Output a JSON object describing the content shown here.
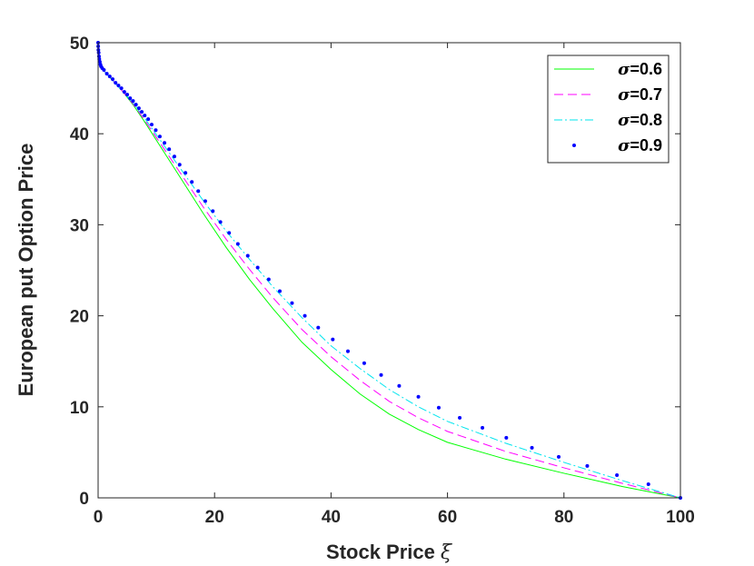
{
  "chart_data": {
    "type": "line",
    "xlabel": "Stock Price",
    "xlabel_symbol": "ξ",
    "ylabel": "European put Option Price",
    "xlim": [
      0,
      100
    ],
    "ylim": [
      0,
      50
    ],
    "xticks": [
      0,
      20,
      40,
      60,
      80,
      100
    ],
    "yticks": [
      0,
      10,
      20,
      30,
      40,
      50
    ],
    "grid": false,
    "legend_position": "top-right",
    "legend_symbol": "σ",
    "series": [
      {
        "name": "=0.6",
        "color": "#00ff00",
        "style": "solid",
        "points": [
          [
            0,
            50
          ],
          [
            0.1,
            48.8
          ],
          [
            0.3,
            47.8
          ],
          [
            0.6,
            47.2
          ],
          [
            1,
            46.9
          ],
          [
            2,
            46.2
          ],
          [
            4,
            44.8
          ],
          [
            6,
            43.2
          ],
          [
            8,
            41.3
          ],
          [
            10,
            39.3
          ],
          [
            14,
            35.3
          ],
          [
            18,
            31.3
          ],
          [
            22,
            27.5
          ],
          [
            26,
            24.0
          ],
          [
            30,
            20.8
          ],
          [
            35,
            17.1
          ],
          [
            40,
            14.1
          ],
          [
            45,
            11.4
          ],
          [
            50,
            9.2
          ],
          [
            55,
            7.5
          ],
          [
            60,
            6.1
          ],
          [
            70,
            4.25
          ],
          [
            80,
            2.7
          ],
          [
            90,
            1.25
          ],
          [
            100,
            0
          ]
        ]
      },
      {
        "name": "=0.7",
        "color": "#ff00ff",
        "style": "dashed",
        "points": [
          [
            0,
            50
          ],
          [
            0.1,
            48.8
          ],
          [
            0.3,
            47.8
          ],
          [
            0.6,
            47.2
          ],
          [
            1,
            46.9
          ],
          [
            2,
            46.2
          ],
          [
            4,
            44.8
          ],
          [
            6,
            43.3
          ],
          [
            8,
            41.5
          ],
          [
            10,
            39.6
          ],
          [
            14,
            35.8
          ],
          [
            18,
            32.0
          ],
          [
            22,
            28.4
          ],
          [
            26,
            25.1
          ],
          [
            30,
            22.0
          ],
          [
            35,
            18.5
          ],
          [
            40,
            15.5
          ],
          [
            45,
            12.9
          ],
          [
            50,
            10.6
          ],
          [
            55,
            8.8
          ],
          [
            60,
            7.3
          ],
          [
            70,
            5.1
          ],
          [
            80,
            3.3
          ],
          [
            90,
            1.6
          ],
          [
            100,
            0
          ]
        ]
      },
      {
        "name": "=0.8",
        "color": "#00e5ee",
        "style": "dashdot",
        "points": [
          [
            0,
            50
          ],
          [
            0.1,
            48.8
          ],
          [
            0.3,
            47.8
          ],
          [
            0.6,
            47.2
          ],
          [
            1,
            46.9
          ],
          [
            2,
            46.2
          ],
          [
            4,
            44.8
          ],
          [
            6,
            43.4
          ],
          [
            8,
            41.7
          ],
          [
            10,
            39.9
          ],
          [
            14,
            36.3
          ],
          [
            18,
            32.7
          ],
          [
            22,
            29.3
          ],
          [
            26,
            26.2
          ],
          [
            30,
            23.2
          ],
          [
            35,
            19.8
          ],
          [
            40,
            16.7
          ],
          [
            45,
            14.2
          ],
          [
            50,
            11.9
          ],
          [
            55,
            10.0
          ],
          [
            60,
            8.4
          ],
          [
            70,
            6.0
          ],
          [
            80,
            3.9
          ],
          [
            90,
            1.9
          ],
          [
            100,
            0
          ]
        ]
      },
      {
        "name": "=0.9",
        "color": "#0000ff",
        "style": "dots",
        "points": [
          [
            0,
            50
          ],
          [
            0.02,
            49.6
          ],
          [
            0.05,
            49.2
          ],
          [
            0.1,
            48.9
          ],
          [
            0.15,
            48.5
          ],
          [
            0.2,
            48.2
          ],
          [
            0.3,
            47.9
          ],
          [
            0.4,
            47.6
          ],
          [
            0.5,
            47.4
          ],
          [
            0.7,
            47.2
          ],
          [
            1,
            47.0
          ],
          [
            1.5,
            46.6
          ],
          [
            2,
            46.3
          ],
          [
            2.5,
            46.0
          ],
          [
            3,
            45.6
          ],
          [
            3.5,
            45.3
          ],
          [
            4,
            45.0
          ],
          [
            4.5,
            44.6
          ],
          [
            5,
            44.3
          ],
          [
            5.5,
            43.9
          ],
          [
            6,
            43.6
          ],
          [
            6.5,
            43.2
          ],
          [
            7,
            42.8
          ],
          [
            7.5,
            42.4
          ],
          [
            8,
            42.0
          ],
          [
            8.6,
            41.6
          ],
          [
            9.2,
            41.0
          ],
          [
            9.9,
            40.4
          ],
          [
            10.6,
            39.7
          ],
          [
            11.4,
            39.0
          ],
          [
            12.2,
            38.3
          ],
          [
            13.1,
            37.5
          ],
          [
            14.0,
            36.6
          ],
          [
            15.0,
            35.7
          ],
          [
            16.1,
            34.7
          ],
          [
            17.2,
            33.7
          ],
          [
            18.4,
            32.6
          ],
          [
            19.7,
            31.5
          ],
          [
            21.0,
            30.3
          ],
          [
            22.5,
            29.1
          ],
          [
            24.0,
            27.9
          ],
          [
            25.7,
            26.6
          ],
          [
            27.4,
            25.3
          ],
          [
            29.3,
            24.0
          ],
          [
            31.2,
            22.7
          ],
          [
            33.3,
            21.4
          ],
          [
            35.5,
            20.0
          ],
          [
            37.8,
            18.7
          ],
          [
            40.3,
            17.4
          ],
          [
            42.9,
            16.1
          ],
          [
            45.7,
            14.8
          ],
          [
            48.6,
            13.5
          ],
          [
            51.7,
            12.3
          ],
          [
            55.0,
            11.1
          ],
          [
            58.5,
            9.9
          ],
          [
            62.1,
            8.8
          ],
          [
            66.0,
            7.7
          ],
          [
            70.1,
            6.6
          ],
          [
            74.5,
            5.5
          ],
          [
            79.1,
            4.5
          ],
          [
            84.0,
            3.5
          ],
          [
            89.1,
            2.5
          ],
          [
            94.5,
            1.5
          ],
          [
            100,
            0
          ]
        ]
      }
    ]
  }
}
